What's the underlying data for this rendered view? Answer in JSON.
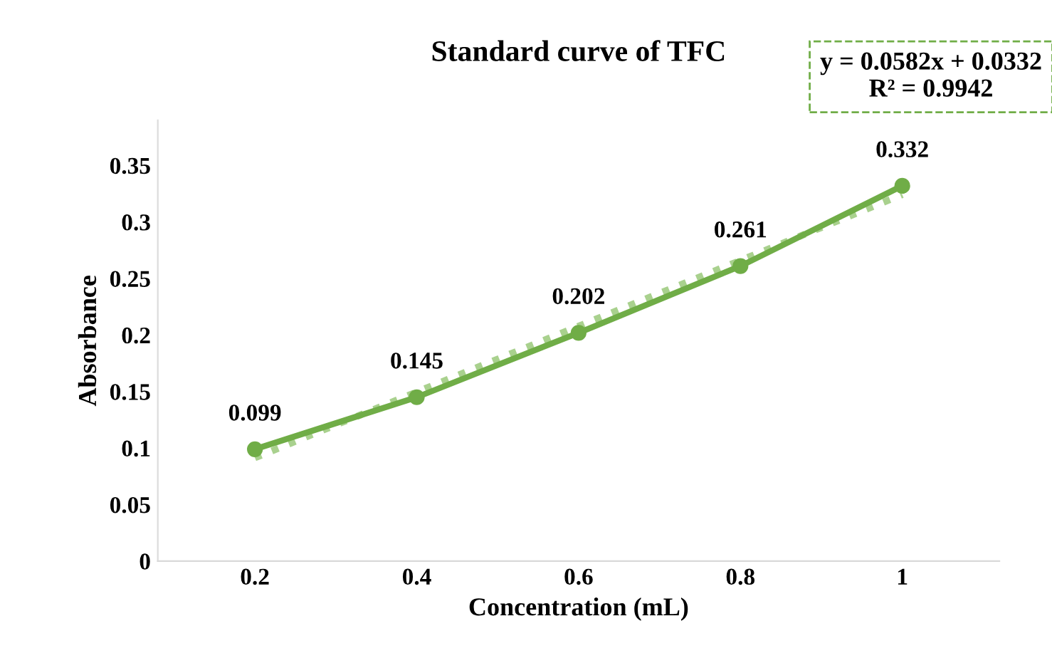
{
  "chart_data": {
    "type": "line",
    "title": "Standard curve of TFC",
    "xlabel": "Concentration (mL)",
    "ylabel": "Absorbance",
    "categories": [
      "0.2",
      "0.4",
      "0.6",
      "0.8",
      "1"
    ],
    "series": [
      {
        "color": "#70ad47",
        "values": [
          0.099,
          0.145,
          0.202,
          0.261,
          0.332
        ],
        "marker": "circle",
        "line_style": "solid",
        "data_labels": true
      },
      {
        "type": "line",
        "color": "#a9d18e",
        "values": [
          0.0914,
          0.1496,
          0.2078,
          0.266,
          0.3242
        ],
        "line_style": "dotted",
        "marker": "none"
      }
    ],
    "ylim": [
      0,
      0.39
    ],
    "yticks": [
      0,
      0.05,
      0.1,
      0.15,
      0.2,
      0.25,
      0.3,
      0.35
    ],
    "grid": false,
    "legend": false,
    "annotations": [
      "y = 0.0582x + 0.0332\nR² = 0.9942"
    ]
  }
}
